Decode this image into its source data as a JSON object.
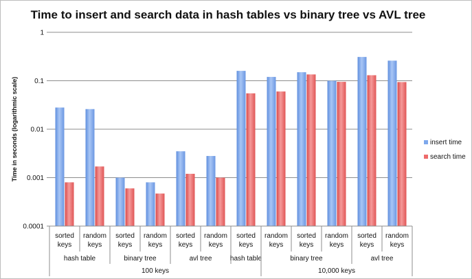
{
  "chart_data": {
    "type": "bar",
    "title": "Time to insert and search data in hash tables vs binary tree vs AVL tree",
    "ylabel": "Time in seconds (logarithmic scale)",
    "xlabel": "",
    "y_scale": "log",
    "ylim": [
      0.0001,
      1
    ],
    "y_ticks": [
      "0.0001",
      "0.001",
      "0.01",
      "0.1",
      "1"
    ],
    "grid": true,
    "legend_position": "right",
    "categories": [
      [
        "sorted",
        "keys"
      ],
      [
        "random",
        "keys"
      ],
      [
        "sorted",
        "keys"
      ],
      [
        "random",
        "keys"
      ],
      [
        "sorted",
        "keys"
      ],
      [
        "random",
        "keys"
      ],
      [
        "sorted",
        "keys"
      ],
      [
        "random",
        "keys"
      ],
      [
        "sorted",
        "keys"
      ],
      [
        "random",
        "keys"
      ],
      [
        "sorted",
        "keys"
      ],
      [
        "random",
        "keys"
      ]
    ],
    "structure_groups": [
      {
        "label": "hash table",
        "span": [
          0,
          1
        ]
      },
      {
        "label": "binary tree",
        "span": [
          2,
          3
        ]
      },
      {
        "label": "avl tree",
        "span": [
          4,
          5
        ]
      },
      {
        "label": "hash table",
        "span": [
          6,
          6
        ]
      },
      {
        "label": "binary tree",
        "span": [
          7,
          9
        ]
      },
      {
        "label": "avl tree",
        "span": [
          10,
          11
        ]
      }
    ],
    "size_groups": [
      {
        "label": "100 keys",
        "span": [
          0,
          6
        ]
      },
      {
        "label": "10,000 keys",
        "span": [
          7,
          11
        ]
      }
    ],
    "series": [
      {
        "name": "insert time",
        "color": "#7ea8ec",
        "values": [
          0.028,
          0.026,
          0.001,
          0.0008,
          0.0035,
          0.0028,
          0.16,
          0.12,
          0.15,
          0.1,
          0.31,
          0.26
        ]
      },
      {
        "name": "search time",
        "color": "#ee6b6b",
        "values": [
          0.0008,
          0.0017,
          0.0006,
          0.00047,
          0.0012,
          0.001,
          0.055,
          0.06,
          0.135,
          0.095,
          0.13,
          0.094
        ]
      }
    ]
  }
}
